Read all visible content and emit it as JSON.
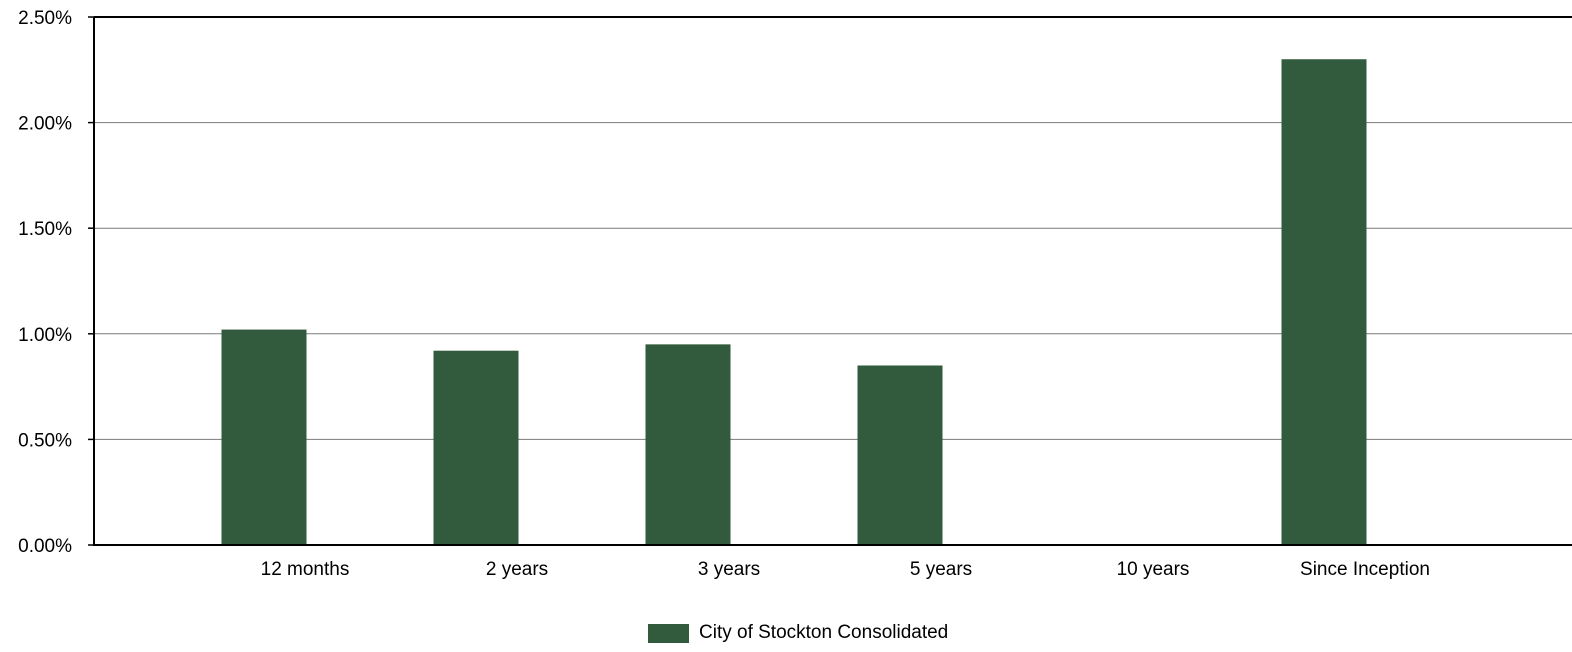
{
  "chart_data": {
    "type": "bar",
    "categories": [
      "12 months",
      "2 years",
      "3 years",
      "5 years",
      "10 years",
      "Since Inception"
    ],
    "series": [
      {
        "name": "City of Stockton Consolidated",
        "values": [
          1.02,
          0.92,
          0.95,
          0.85,
          null,
          2.3
        ],
        "color": "#325b3d"
      }
    ],
    "ylim": [
      0,
      2.5
    ],
    "y_ticks": [
      0,
      0.5,
      1.0,
      1.5,
      2.0,
      2.5
    ],
    "y_tick_labels": [
      "0.00%",
      "0.50%",
      "1.00%",
      "1.50%",
      "2.00%",
      "2.50%"
    ],
    "grid": true,
    "legend_position": "bottom"
  }
}
